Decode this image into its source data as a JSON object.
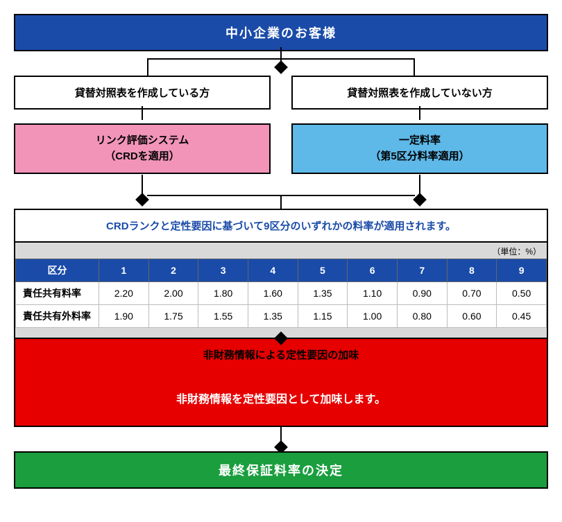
{
  "header": "中小企業のお客様",
  "branch_left_label": "貸替対照表を作成している方",
  "branch_right_label": "貸替対照表を作成していない方",
  "left_system": "リンク評価システム\n（CRDを適用）",
  "right_system": "一定料率\n（第5区分料率適用）",
  "table": {
    "title": "CRDランクと定性要因に基づいて9区分のいずれかの料率が適用されます。",
    "unit": "（単位：%）",
    "col_kubun": "区分",
    "columns": [
      "1",
      "2",
      "3",
      "4",
      "5",
      "6",
      "7",
      "8",
      "9"
    ],
    "rows": [
      {
        "label": "責任共有料率",
        "values": [
          "2.20",
          "2.00",
          "1.80",
          "1.60",
          "1.35",
          "1.10",
          "0.90",
          "0.70",
          "0.50"
        ]
      },
      {
        "label": "責任共有外料率",
        "values": [
          "1.90",
          "1.75",
          "1.55",
          "1.35",
          "1.15",
          "1.00",
          "0.80",
          "0.60",
          "0.45"
        ]
      }
    ]
  },
  "red_title": "非財務情報による定性要因の加味",
  "red_body": "非財務情報を定性要因として加味します。",
  "final": "最終保証料率の決定",
  "colors": {
    "blue": "#1a4ba8",
    "pink": "#f194b8",
    "lightblue": "#5eb8e8",
    "red": "#e60000",
    "green": "#1a9e3e",
    "gray": "#d9d9d9"
  }
}
